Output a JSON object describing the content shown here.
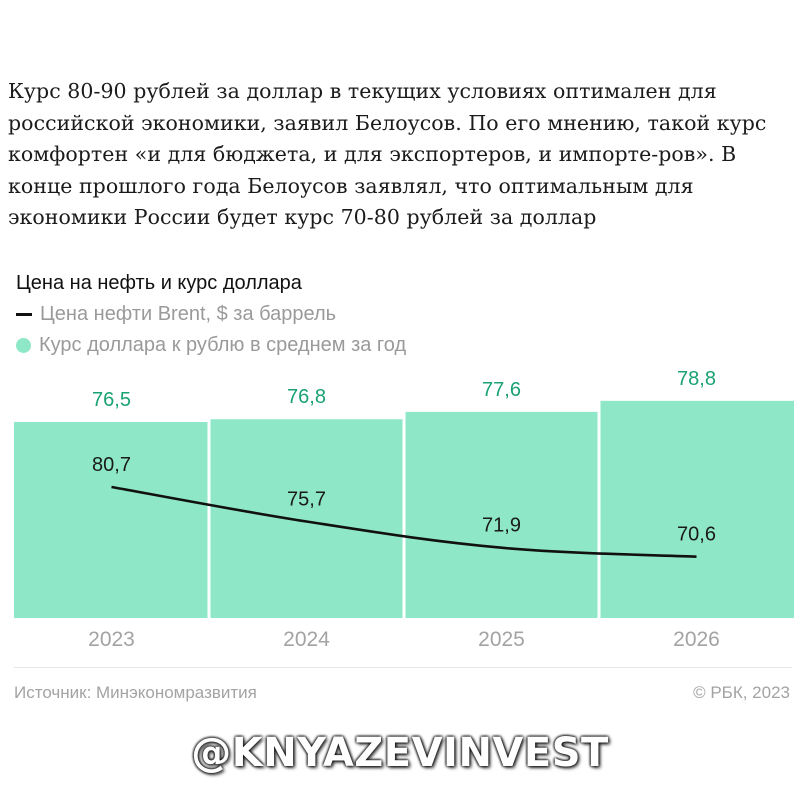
{
  "headline": "Курс 80-90 рублей за доллар в текущих условиях оптимален для российской экономики, заявил Белоусов. По его мнению, такой курс комфортен «и для бюджета, и для экспортеров, и импорте-ров». В конце прошлого года Белоусов заявлял, что оптимальным для экономики России будет курс 70-80 рублей за доллар",
  "chart_data": {
    "type": "bar",
    "title": "Цена на нефть и курс доллара",
    "categories": [
      "2023",
      "2024",
      "2025",
      "2026"
    ],
    "series": [
      {
        "name": "Курс доллара к рублю в среднем за год",
        "type": "bar",
        "values": [
          76.5,
          76.8,
          77.6,
          78.8
        ],
        "labels": [
          "76,5",
          "76,8",
          "77,6",
          "78,8"
        ],
        "color": "#8ee8c8"
      },
      {
        "name": "Цена нефти Brent, $ за баррель",
        "type": "line",
        "values": [
          80.7,
          75.7,
          71.9,
          70.6
        ],
        "labels": [
          "80,7",
          "75,7",
          "71,9",
          "70,6"
        ],
        "color": "#111111"
      }
    ],
    "legend_position": "top-left",
    "grid": false
  },
  "source": "Источник: Минэкономразвития",
  "copyright": "© РБК, 2023",
  "watermark": "@KNYAZEVINVEST",
  "colors": {
    "bar": "#8ee8c8",
    "bar_label": "#1aa272",
    "line": "#111111",
    "tick": "#a3a3a3"
  }
}
